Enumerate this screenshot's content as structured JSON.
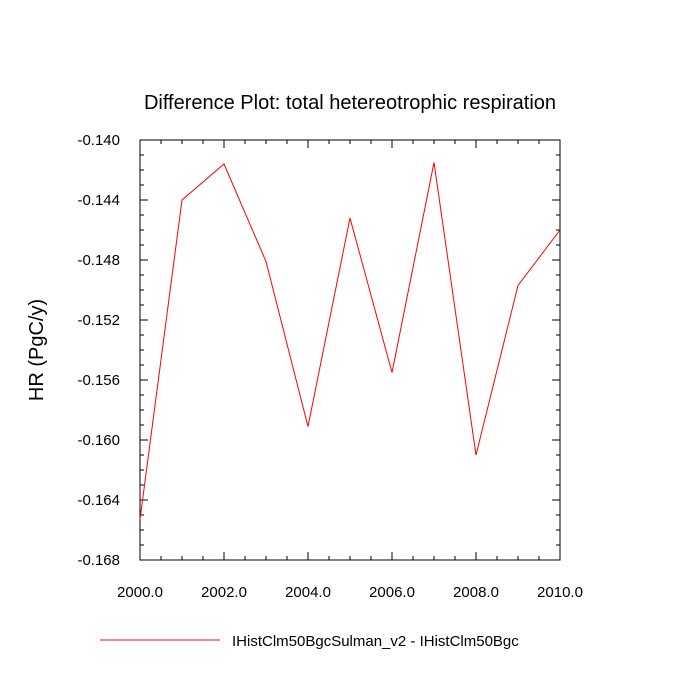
{
  "chart_data": {
    "type": "line",
    "title": "Difference Plot: total hetereotrophic respiration",
    "xlabel": "",
    "ylabel": "HR  (PgC/y)",
    "x": [
      2000,
      2001,
      2002,
      2003,
      2004,
      2005,
      2006,
      2007,
      2008,
      2009,
      2010
    ],
    "series": [
      {
        "name": "IHistClm50BgcSulman_v2 - IHistClm50Bgc",
        "color": "#ff0000",
        "values": [
          -0.1653,
          -0.144,
          -0.1416,
          -0.1481,
          -0.1591,
          -0.1452,
          -0.1555,
          -0.1415,
          -0.161,
          -0.1497,
          -0.146
        ]
      }
    ],
    "xlim": [
      2000,
      2010
    ],
    "ylim": [
      -0.168,
      -0.14
    ],
    "xticks": [
      "2000.0",
      "2002.0",
      "2004.0",
      "2006.0",
      "2008.0",
      "2010.0"
    ],
    "yticks": [
      "-0.140",
      "-0.144",
      "-0.148",
      "-0.152",
      "-0.156",
      "-0.160",
      "-0.164",
      "-0.168"
    ],
    "grid": false,
    "legend_position": "bottom"
  }
}
